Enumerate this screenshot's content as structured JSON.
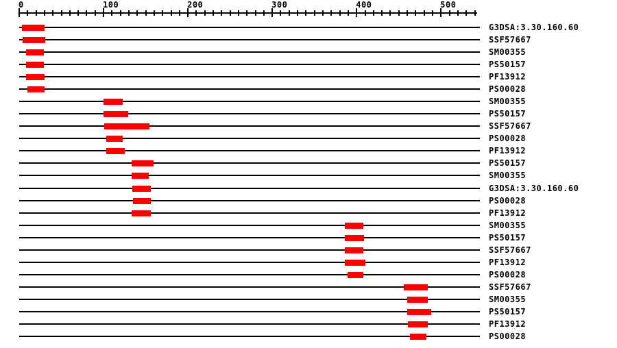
{
  "page": {
    "background": "#ffffff",
    "colors": {
      "domain_box": "#ff0000",
      "line": "#000000",
      "text": "#000000"
    }
  },
  "chart_data": {
    "type": "bar",
    "subtype": "protein-domain-architecture",
    "orientation": "horizontal",
    "title": "",
    "legend": "none",
    "grid": false,
    "axis": {
      "position": "top",
      "xlabel": "",
      "min": 0,
      "max": 543,
      "minor_tick_interval": 10,
      "major_tick_interval": 100,
      "major_ticks": [
        0,
        100,
        200,
        300,
        400,
        500
      ],
      "major_tick_labels": [
        "0",
        "100",
        "200",
        "300",
        "400",
        "500"
      ]
    },
    "rows": [
      {
        "label": "G3DSA:3.30.160.60",
        "start": 3,
        "end": 30
      },
      {
        "label": "SSF57667",
        "start": 4,
        "end": 31
      },
      {
        "label": "SM00355",
        "start": 8,
        "end": 29
      },
      {
        "label": "PS50157",
        "start": 8,
        "end": 29
      },
      {
        "label": "PF13912",
        "start": 8,
        "end": 30
      },
      {
        "label": "PS00028",
        "start": 10,
        "end": 30
      },
      {
        "label": "SM00355",
        "start": 100,
        "end": 123
      },
      {
        "label": "PS50157",
        "start": 100,
        "end": 129
      },
      {
        "label": "SSF57667",
        "start": 101,
        "end": 154
      },
      {
        "label": "PS00028",
        "start": 103,
        "end": 123
      },
      {
        "label": "PF13912",
        "start": 103,
        "end": 125
      },
      {
        "label": "PS50157",
        "start": 133,
        "end": 159
      },
      {
        "label": "SM00355",
        "start": 133,
        "end": 154
      },
      {
        "label": "G3DSA:3.30.160.60",
        "start": 134,
        "end": 156
      },
      {
        "label": "PS00028",
        "start": 135,
        "end": 156
      },
      {
        "label": "PF13912",
        "start": 133,
        "end": 156
      },
      {
        "label": "SM00355",
        "start": 386,
        "end": 408
      },
      {
        "label": "PS50157",
        "start": 386,
        "end": 409
      },
      {
        "label": "SSF57667",
        "start": 386,
        "end": 408
      },
      {
        "label": "PF13912",
        "start": 386,
        "end": 410
      },
      {
        "label": "PS00028",
        "start": 389,
        "end": 408
      },
      {
        "label": "SSF57667",
        "start": 456,
        "end": 484
      },
      {
        "label": "SM00355",
        "start": 460,
        "end": 484
      },
      {
        "label": "PS50157",
        "start": 460,
        "end": 488
      },
      {
        "label": "PF13912",
        "start": 461,
        "end": 484
      },
      {
        "label": "PS00028",
        "start": 463,
        "end": 483
      }
    ]
  }
}
